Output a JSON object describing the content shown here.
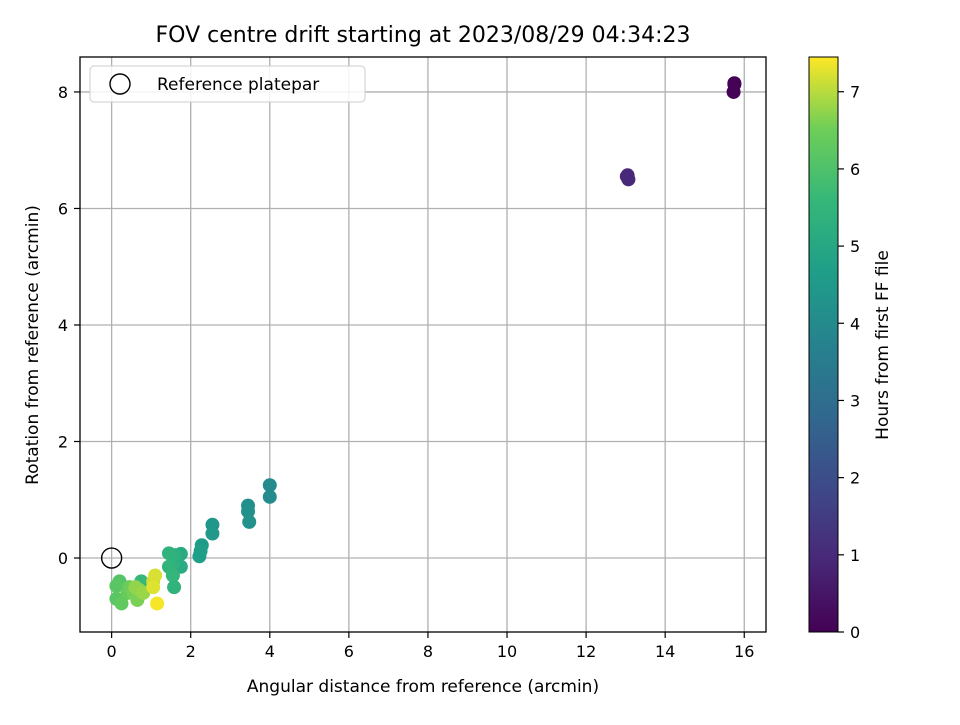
{
  "chart_data": {
    "type": "scatter",
    "title": "FOV centre drift starting at 2023/08/29 04:34:23",
    "xlabel": "Angular distance from reference (arcmin)",
    "ylabel": "Rotation from reference (arcmin)",
    "xlim": [
      -0.8,
      16.55
    ],
    "ylim": [
      -1.27,
      8.6
    ],
    "xticks": [
      "0",
      "2",
      "4",
      "6",
      "8",
      "10",
      "12",
      "14",
      "16"
    ],
    "yticks": [
      "0",
      "2",
      "4",
      "6",
      "8"
    ],
    "grid": true,
    "legend": {
      "position": "top-left",
      "label": "Reference platepar",
      "marker": "open-circle"
    },
    "reference_point": {
      "x": 0,
      "y": 0
    },
    "colorbar": {
      "label": "Hours from first FF file",
      "colormap": "viridis",
      "range": [
        0,
        7.45
      ],
      "ticks": [
        "0",
        "1",
        "2",
        "3",
        "4",
        "5",
        "6",
        "7"
      ]
    },
    "points": [
      {
        "x": 15.75,
        "y": 8.15,
        "c": 0.0
      },
      {
        "x": 15.75,
        "y": 8.13,
        "c": 0.02
      },
      {
        "x": 15.73,
        "y": 8.0,
        "c": 0.05
      },
      {
        "x": 13.03,
        "y": 6.55,
        "c": 0.95
      },
      {
        "x": 13.07,
        "y": 6.5,
        "c": 1.0
      },
      {
        "x": 13.05,
        "y": 6.57,
        "c": 0.97
      },
      {
        "x": 4.0,
        "y": 1.25,
        "c": 4.0
      },
      {
        "x": 4.0,
        "y": 1.05,
        "c": 4.05
      },
      {
        "x": 3.45,
        "y": 0.9,
        "c": 4.15
      },
      {
        "x": 3.45,
        "y": 0.8,
        "c": 4.2
      },
      {
        "x": 3.48,
        "y": 0.62,
        "c": 4.25
      },
      {
        "x": 2.55,
        "y": 0.57,
        "c": 4.4
      },
      {
        "x": 2.55,
        "y": 0.42,
        "c": 4.45
      },
      {
        "x": 2.28,
        "y": 0.22,
        "c": 4.6
      },
      {
        "x": 2.25,
        "y": 0.12,
        "c": 4.65
      },
      {
        "x": 2.22,
        "y": 0.03,
        "c": 4.7
      },
      {
        "x": 1.75,
        "y": 0.07,
        "c": 5.1
      },
      {
        "x": 1.75,
        "y": -0.15,
        "c": 5.15
      },
      {
        "x": 1.6,
        "y": 0.05,
        "c": 5.3
      },
      {
        "x": 1.55,
        "y": -0.1,
        "c": 5.35
      },
      {
        "x": 1.45,
        "y": 0.08,
        "c": 5.4
      },
      {
        "x": 1.45,
        "y": -0.15,
        "c": 5.45
      },
      {
        "x": 1.55,
        "y": -0.3,
        "c": 5.5
      },
      {
        "x": 1.58,
        "y": -0.5,
        "c": 5.45
      },
      {
        "x": 0.75,
        "y": -0.4,
        "c": 5.6
      },
      {
        "x": 0.2,
        "y": -0.4,
        "c": 6.1
      },
      {
        "x": 0.12,
        "y": -0.48,
        "c": 6.2
      },
      {
        "x": 0.12,
        "y": -0.7,
        "c": 6.2
      },
      {
        "x": 0.25,
        "y": -0.78,
        "c": 6.3
      },
      {
        "x": 0.4,
        "y": -0.6,
        "c": 6.4
      },
      {
        "x": 0.45,
        "y": -0.5,
        "c": 6.45
      },
      {
        "x": 0.55,
        "y": -0.6,
        "c": 6.55
      },
      {
        "x": 0.65,
        "y": -0.72,
        "c": 6.6
      },
      {
        "x": 0.7,
        "y": -0.55,
        "c": 6.7
      },
      {
        "x": 0.6,
        "y": -0.5,
        "c": 6.75
      },
      {
        "x": 0.8,
        "y": -0.6,
        "c": 6.8
      },
      {
        "x": 1.05,
        "y": -0.4,
        "c": 7.1
      },
      {
        "x": 1.1,
        "y": -0.3,
        "c": 7.2
      },
      {
        "x": 1.05,
        "y": -0.5,
        "c": 7.25
      },
      {
        "x": 1.15,
        "y": -0.78,
        "c": 7.4
      }
    ]
  }
}
